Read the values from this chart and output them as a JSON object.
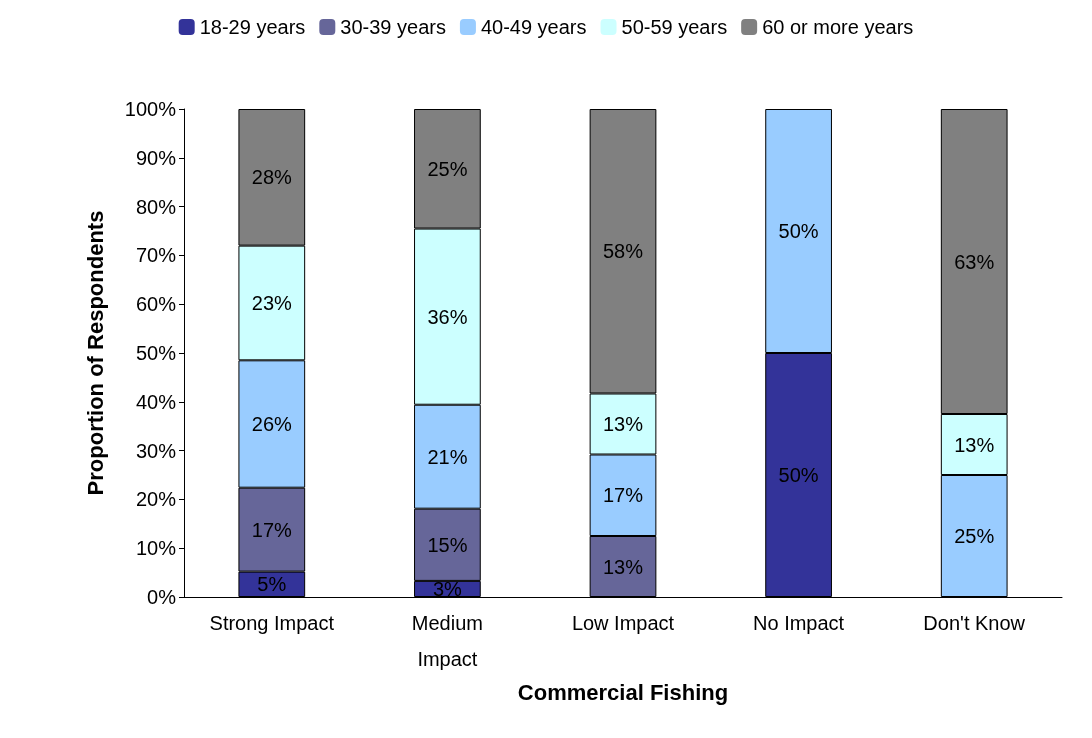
{
  "chart_data": {
    "type": "bar",
    "stacked": true,
    "xlabel": "Commercial Fishing",
    "ylabel": "Proportion of Respondents",
    "categories": [
      "Strong Impact",
      "Medium\nImpact",
      "Low Impact",
      "No Impact",
      "Don't Know"
    ],
    "series": [
      {
        "name": "18-29 years",
        "color": "#333399",
        "values": [
          5.2,
          3.3,
          null,
          50,
          null
        ],
        "value_labels": [
          "5%",
          "3%",
          null,
          "50%",
          null
        ]
      },
      {
        "name": "30-39 years",
        "color": "#666699",
        "values": [
          17.2,
          14.8,
          12.5,
          null,
          null
        ],
        "value_labels": [
          "17%",
          "15%",
          "13%",
          null,
          null
        ]
      },
      {
        "name": "40-49 years",
        "color": "#99ccff",
        "values": [
          26.1,
          21.3,
          16.7,
          50,
          25
        ],
        "value_labels": [
          "26%",
          "21%",
          "17%",
          "50%",
          "25%"
        ]
      },
      {
        "name": "50-59 years",
        "color": "#ccffff",
        "values": [
          23.5,
          36.1,
          12.5,
          null,
          12.5
        ],
        "value_labels": [
          "23%",
          "36%",
          "13%",
          null,
          "13%"
        ]
      },
      {
        "name": "60 or more years",
        "color": "#808080",
        "values": [
          28,
          24.5,
          58.3,
          null,
          62.5
        ],
        "value_labels": [
          "28%",
          "25%",
          "58%",
          null,
          "63%"
        ]
      }
    ],
    "ylim": [
      0,
      100
    ],
    "yticks": [
      {
        "value": 0,
        "label": "0%"
      },
      {
        "value": 10,
        "label": "10%"
      },
      {
        "value": 20,
        "label": "20%"
      },
      {
        "value": 30,
        "label": "30%"
      },
      {
        "value": 40,
        "label": "40%"
      },
      {
        "value": 50,
        "label": "50%"
      },
      {
        "value": 60,
        "label": "60%"
      },
      {
        "value": 70,
        "label": "70%"
      },
      {
        "value": 80,
        "label": "80%"
      },
      {
        "value": 90,
        "label": "90%"
      },
      {
        "value": 100,
        "label": "100%"
      }
    ],
    "grid": false,
    "legend": "top"
  }
}
